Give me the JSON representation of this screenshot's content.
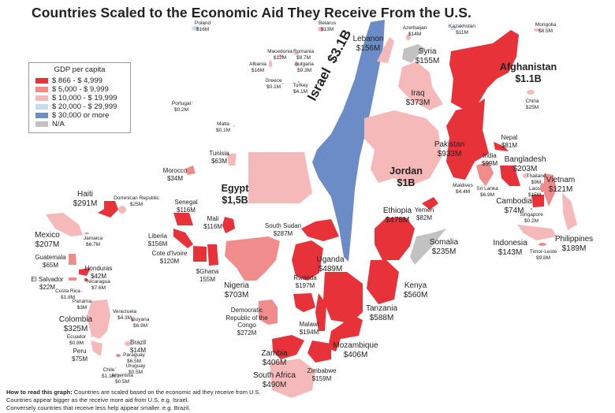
{
  "title": "Countries Scaled to the Economic Aid They Receive From the U.S.",
  "legend": {
    "title": "GDP per capita",
    "items": [
      {
        "label": "$ 866  -  $ 4,999",
        "color": "#e8323a"
      },
      {
        "label": "$ 5,000  -  $ 9,999",
        "color": "#f08c8c"
      },
      {
        "label": "$ 10,000  -  $ 19,999",
        "color": "#f6b9b9"
      },
      {
        "label": "$ 20,000  -  $ 29,999",
        "color": "#c7dbef"
      },
      {
        "label": "$ 30,000 or more",
        "color": "#6b8cc7"
      },
      {
        "label": "N/A",
        "color": "#c2c2c2"
      }
    ]
  },
  "israel": {
    "name": "Israel",
    "aid": "$3.1B"
  },
  "countries": [
    {
      "name": "Poland",
      "aid": "$16M",
      "cat": 3
    },
    {
      "name": "Belarus",
      "aid": "$13M",
      "cat": 2
    },
    {
      "name": "Lebanon",
      "aid": "$156M",
      "cat": 2
    },
    {
      "name": "Azerbaijan",
      "aid": "$14M",
      "cat": 2
    },
    {
      "name": "Kazakhstan",
      "aid": "$11M",
      "cat": 3
    },
    {
      "name": "Mongolia",
      "aid": "$8.5M",
      "cat": 2
    },
    {
      "name": "Syria",
      "aid": "$155M",
      "cat": 5
    },
    {
      "name": "Afghanistan",
      "aid": "$1.1B",
      "cat": 0
    },
    {
      "name": "China",
      "aid": "$25M",
      "cat": 2
    },
    {
      "name": "Iraq",
      "aid": "$373M",
      "cat": 2
    },
    {
      "name": "Macedonia",
      "aid": "$12M",
      "cat": 2
    },
    {
      "name": "Romania",
      "aid": "$9.7M",
      "cat": 2
    },
    {
      "name": "Albania",
      "aid": "$16M",
      "cat": 2
    },
    {
      "name": "Bulgaria",
      "aid": "$9.3M",
      "cat": 2
    },
    {
      "name": "Greece",
      "aid": "$0.1M",
      "cat": 2
    },
    {
      "name": "Turkey",
      "aid": "$4.1M",
      "cat": 2
    },
    {
      "name": "Portugal",
      "aid": "$0.2M",
      "cat": 2
    },
    {
      "name": "Malta",
      "aid": "$0.1M",
      "cat": 2
    },
    {
      "name": "Jordan",
      "aid": "$1B",
      "cat": 2
    },
    {
      "name": "Egypt",
      "aid": "$1,5B",
      "cat": 2
    },
    {
      "name": "Pakistan",
      "aid": "$933M",
      "cat": 0
    },
    {
      "name": "Nepal",
      "aid": "$81M",
      "cat": 0
    },
    {
      "name": "India",
      "aid": "$99M",
      "cat": 1
    },
    {
      "name": "Bangladesh",
      "aid": "$203M",
      "cat": 0
    },
    {
      "name": "Maldives",
      "aid": "$4.4M",
      "cat": 2
    },
    {
      "name": "Sri Lanka",
      "aid": "$6.9M",
      "cat": 1
    },
    {
      "name": "Thailand",
      "aid": "$9M",
      "cat": 2
    },
    {
      "name": "Laos",
      "aid": "$15M",
      "cat": 1
    },
    {
      "name": "Vietnam",
      "aid": "$121M",
      "cat": 1
    },
    {
      "name": "Cambodia",
      "aid": "$74M",
      "cat": 0
    },
    {
      "name": "Singapore",
      "aid": "$0.2M",
      "cat": 4
    },
    {
      "name": "Indonesia",
      "aid": "$143M",
      "cat": 2
    },
    {
      "name": "Philippines",
      "aid": "$189M",
      "cat": 2
    },
    {
      "name": "Timor-Leste",
      "aid": "$9,8M",
      "cat": 1
    },
    {
      "name": "Yemen",
      "aid": "$82M",
      "cat": 0
    },
    {
      "name": "Somalia",
      "aid": "$235M",
      "cat": 5
    },
    {
      "name": "Ethiopia",
      "aid": "$478M",
      "cat": 0
    },
    {
      "name": "Kenya",
      "aid": "$560M",
      "cat": 0
    },
    {
      "name": "Tanzania",
      "aid": "$588M",
      "cat": 0
    },
    {
      "name": "Mozambique",
      "aid": "$406M",
      "cat": 0
    },
    {
      "name": "Zimbabwe",
      "aid": "$159M",
      "cat": 0
    },
    {
      "name": "Malawi",
      "aid": "$194M",
      "cat": 0
    },
    {
      "name": "Zambia",
      "aid": "$406M",
      "cat": 0
    },
    {
      "name": "South Africa",
      "aid": "$490M",
      "cat": 2
    },
    {
      "name": "Democratic Republic of the Congo",
      "aid": "$272M",
      "cat": 1
    },
    {
      "name": "Rwanda",
      "aid": "$197M",
      "cat": 0
    },
    {
      "name": "Uganda",
      "aid": "$489M",
      "cat": 0
    },
    {
      "name": "South Sudan",
      "aid": "$287M",
      "cat": 0
    },
    {
      "name": "Nigeria",
      "aid": "$703M",
      "cat": 1
    },
    {
      "name": "$Ghana",
      "aid": "155M",
      "cat": 0
    },
    {
      "name": "Cote d'Ivoire",
      "aid": "$120M",
      "cat": 0
    },
    {
      "name": "Liberia",
      "aid": "$156M",
      "cat": 0
    },
    {
      "name": "Mali",
      "aid": "$116M",
      "cat": 0
    },
    {
      "name": "Senegal",
      "aid": "$116M",
      "cat": 0
    },
    {
      "name": "Morocco",
      "aid": "$34M",
      "cat": 1
    },
    {
      "name": "Tunisia",
      "aid": "$63M",
      "cat": 2
    },
    {
      "name": "Haiti",
      "aid": "$291M",
      "cat": 0
    },
    {
      "name": "Dominican Republic",
      "aid": "$25M",
      "cat": 2
    },
    {
      "name": "Mexico",
      "aid": "$207M",
      "cat": 2
    },
    {
      "name": "Jamaica",
      "aid": "$6.7M",
      "cat": 1
    },
    {
      "name": "Guatemala",
      "aid": "$65M",
      "cat": 1
    },
    {
      "name": "Honduras",
      "aid": "$42M",
      "cat": 0
    },
    {
      "name": "El Salvador",
      "aid": "$22M",
      "cat": 1
    },
    {
      "name": "Nicaragua",
      "aid": "$7.6M",
      "cat": 0
    },
    {
      "name": "Costa Rica",
      "aid": "$1.8M",
      "cat": 2
    },
    {
      "name": "Panama",
      "aid": "$3M",
      "cat": 2
    },
    {
      "name": "Colombia",
      "aid": "$325M",
      "cat": 2
    },
    {
      "name": "Venezuela",
      "aid": "$4.3M",
      "cat": 2
    },
    {
      "name": "Guyana",
      "aid": "$6.9M",
      "cat": 1
    },
    {
      "name": "Ecuador",
      "aid": "$0.8M",
      "cat": 2
    },
    {
      "name": "Brazil",
      "aid": "$14M",
      "cat": 2
    },
    {
      "name": "Peru",
      "aid": "$75M",
      "cat": 2
    },
    {
      "name": "Paraguay",
      "aid": "$6.5M",
      "cat": 1
    },
    {
      "name": "Uruguay",
      "aid": "$0.5M",
      "cat": 2
    },
    {
      "name": "Chile",
      "aid": "$1.1M",
      "cat": 2
    },
    {
      "name": "Argentina",
      "aid": "$0.5M",
      "cat": 2
    }
  ],
  "note": {
    "bold": "How to read this graph:",
    "line1": " Countries are scaled based on the economic aid they receive from U.S.",
    "line2": "Countries appear bigger as the receive more aid from U.S. e.g. Israel.",
    "line3": "Conversely countries that receive less help appear smaller. e.g. Brazil."
  }
}
